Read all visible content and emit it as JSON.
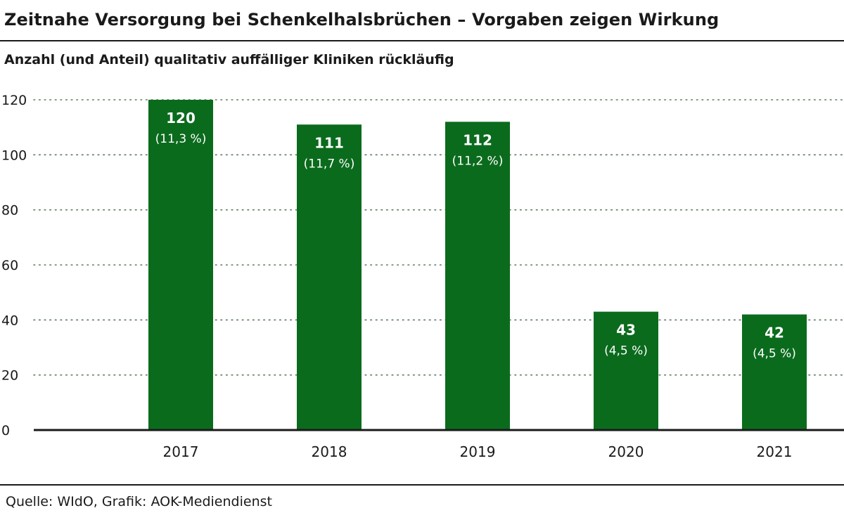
{
  "header": {
    "title": "Zeitnahe Versorgung bei Schenkelhalsbrüchen – Vorgaben zeigen Wirkung",
    "subtitle": "Anzahl (und Anteil) qualitativ auffälliger Kliniken rückläufig"
  },
  "footer": {
    "source": "Quelle: WIdO, Grafik: AOK-Mediendienst"
  },
  "colors": {
    "bar": "#0b6b1d",
    "grid": "#5a7a5a",
    "axis": "#1a1a1a",
    "text": "#1a1a1a",
    "label_on_bar": "#ffffff"
  },
  "chart_data": {
    "type": "bar",
    "categories": [
      "2017",
      "2018",
      "2019",
      "2020",
      "2021"
    ],
    "values": [
      120,
      111,
      112,
      43,
      42
    ],
    "value_labels": [
      "120",
      "111",
      "112",
      "43",
      "42"
    ],
    "share_labels": [
      "(11,3 %)",
      "(11,7 %)",
      "(11,2 %)",
      "(4,5 %)",
      "(4,5 %)"
    ],
    "ylim": [
      0,
      120
    ],
    "yticks": [
      0,
      20,
      40,
      60,
      80,
      100,
      120
    ],
    "grid": true,
    "grid_style": "dotted",
    "legend": false
  }
}
